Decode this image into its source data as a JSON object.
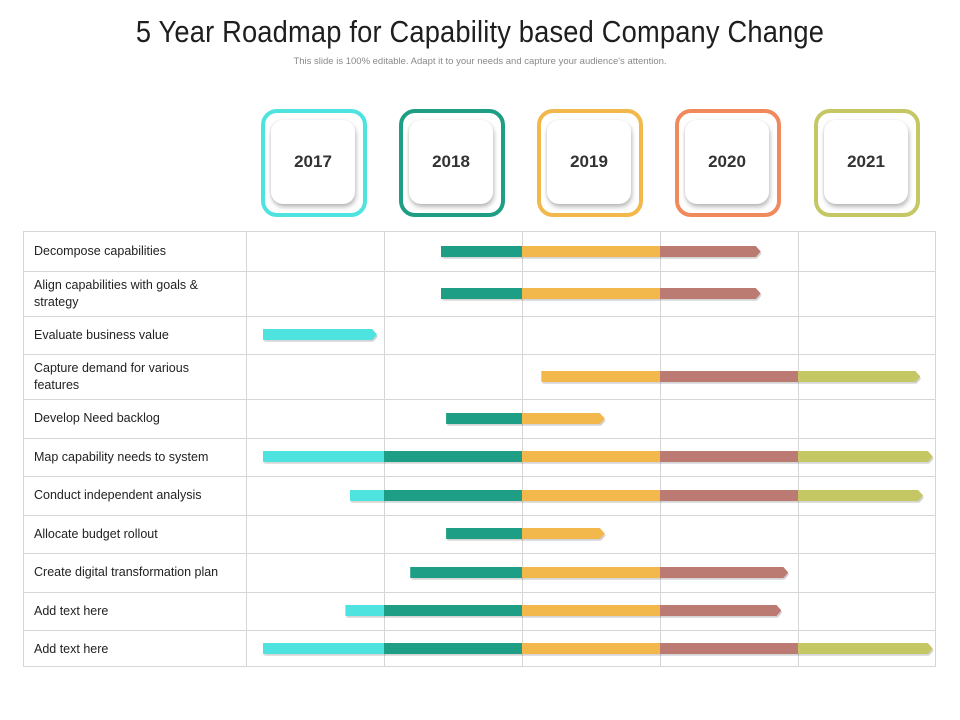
{
  "header": {
    "title": "5 Year Roadmap for Capability based Company Change",
    "subtitle": "This slide is 100% editable.  Adapt it to your needs and capture your audience's attention."
  },
  "years": [
    {
      "label": "2017",
      "color": "#4fe3e0"
    },
    {
      "label": "2018",
      "color": "#1e9e85"
    },
    {
      "label": "2019",
      "color": "#f2b84c"
    },
    {
      "label": "2020",
      "color": "#f08a5d"
    },
    {
      "label": "2021",
      "color": "#c5c765"
    }
  ],
  "bar_colors": {
    "2017": "#4fe3e0",
    "2018": "#1e9e85",
    "2019": "#f2b84c",
    "2020": "#bb7a72",
    "2021": "#c5c765"
  },
  "tasks": [
    {
      "label": "Decompose capabilities",
      "start": 1.41,
      "end": 3.73
    },
    {
      "label": "Align capabilities with goals & strategy",
      "start": 1.41,
      "end": 3.73
    },
    {
      "label": "Evaluate business value",
      "start": 0.12,
      "end": 0.95
    },
    {
      "label": "Capture demand for various features",
      "start": 2.14,
      "end": 4.88
    },
    {
      "label": "Develop Need backlog",
      "start": 1.45,
      "end": 2.6
    },
    {
      "label": "Map capability needs to system",
      "start": 0.12,
      "end": 4.97
    },
    {
      "label": "Conduct independent analysis",
      "start": 0.75,
      "end": 4.9
    },
    {
      "label": "Allocate budget rollout",
      "start": 1.45,
      "end": 2.6
    },
    {
      "label": "Create digital transformation plan",
      "start": 1.19,
      "end": 3.93
    },
    {
      "label": "Add text here",
      "start": 0.72,
      "end": 3.88
    },
    {
      "label": "Add text here",
      "start": 0.12,
      "end": 4.97
    }
  ]
}
